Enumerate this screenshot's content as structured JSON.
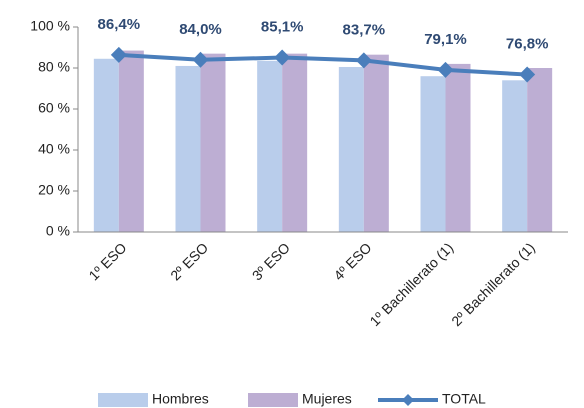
{
  "chart_data": {
    "type": "bar",
    "categories": [
      "1º ESO",
      "2º ESO",
      "3º ESO",
      "4º ESO",
      "1º Bachillerato (1)",
      "2º Bachillerato (1)"
    ],
    "series": [
      {
        "name": "Hombres",
        "color": "#b9cdeb",
        "values": [
          84.5,
          81,
          83.5,
          80.5,
          76,
          74
        ]
      },
      {
        "name": "Mujeres",
        "color": "#bdaed3",
        "values": [
          88.5,
          87,
          87,
          86.5,
          82,
          80
        ]
      },
      {
        "name": "TOTAL",
        "type": "line",
        "color": "#4a7ebb",
        "values": [
          86.4,
          84.0,
          85.1,
          83.7,
          79.1,
          76.8
        ],
        "value_labels": [
          "86,4%",
          "84,0%",
          "85,1%",
          "83,7%",
          "79,1%",
          "76,8%"
        ]
      }
    ],
    "ylim": [
      0,
      100
    ],
    "yticks": [
      {
        "value": 0,
        "label": "0 %"
      },
      {
        "value": 20,
        "label": "20 %"
      },
      {
        "value": 40,
        "label": "40 %"
      },
      {
        "value": 60,
        "label": "60 %"
      },
      {
        "value": 80,
        "label": "80 %"
      },
      {
        "value": 100,
        "label": "100 %"
      }
    ],
    "grid": false,
    "legend": "bottom"
  }
}
